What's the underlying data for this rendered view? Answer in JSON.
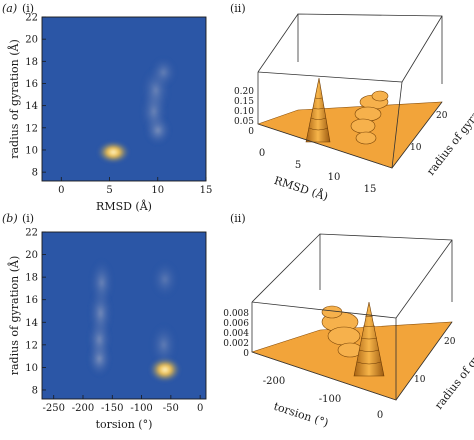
{
  "panel_labels": {
    "a": "(a)",
    "b": "(b)",
    "i": "(i)",
    "ii": "(ii)"
  },
  "colors": {
    "map_background": "#2b56a6",
    "hot": "#fff3b0",
    "surface": "#f2a43a",
    "surface_rim": "#8a4f0a",
    "axis": "#1a1a1a"
  },
  "chart_data": [
    {
      "id": "a-i",
      "type": "heatmap",
      "xlabel": "RMSD (Å)",
      "ylabel": "radius of gyration (Å)",
      "xlim": [
        -2,
        15
      ],
      "ylim": [
        7.2,
        22
      ],
      "xticks": [
        0,
        5,
        10,
        15
      ],
      "yticks": [
        8,
        10,
        12,
        14,
        16,
        18,
        20,
        22
      ],
      "peaks": [
        {
          "x": 5.4,
          "y": 9.8,
          "sx": 0.75,
          "sy": 0.45,
          "amp": 1.0
        },
        {
          "x": 10.0,
          "y": 11.8,
          "sx": 0.6,
          "sy": 0.6,
          "amp": 0.55
        },
        {
          "x": 9.6,
          "y": 13.5,
          "sx": 0.6,
          "sy": 0.9,
          "amp": 0.35
        },
        {
          "x": 9.8,
          "y": 15.4,
          "sx": 0.65,
          "sy": 0.9,
          "amp": 0.3
        },
        {
          "x": 10.6,
          "y": 17.0,
          "sx": 0.6,
          "sy": 0.6,
          "amp": 0.25
        }
      ]
    },
    {
      "id": "a-ii",
      "type": "surface",
      "xlabel": "RMSD (Å)",
      "ylabel": "radius of gyration",
      "xticks": [
        0,
        5,
        10,
        15
      ],
      "yticks": [
        10,
        20
      ],
      "zticks": [
        "0",
        "0.05",
        "0.10",
        "0.15",
        "0.20"
      ]
    },
    {
      "id": "b-i",
      "type": "heatmap",
      "xlabel": "torsion (°)",
      "ylabel": "radius of gyration (Å)",
      "xlim": [
        -270,
        10
      ],
      "ylim": [
        7.2,
        22
      ],
      "xticks": [
        -250,
        -200,
        -150,
        -100,
        -50,
        0
      ],
      "yticks": [
        8,
        10,
        12,
        14,
        16,
        18,
        20,
        22
      ],
      "peaks": [
        {
          "x": -60,
          "y": 9.8,
          "sx": 12,
          "sy": 0.5,
          "amp": 1.0
        },
        {
          "x": -172,
          "y": 10.8,
          "sx": 9,
          "sy": 0.7,
          "amp": 0.55
        },
        {
          "x": -172,
          "y": 12.5,
          "sx": 9,
          "sy": 0.8,
          "amp": 0.45
        },
        {
          "x": -170,
          "y": 14.8,
          "sx": 9,
          "sy": 1.0,
          "amp": 0.4
        },
        {
          "x": -168,
          "y": 17.5,
          "sx": 9,
          "sy": 0.9,
          "amp": 0.3
        },
        {
          "x": -62,
          "y": 12.0,
          "sx": 10,
          "sy": 0.8,
          "amp": 0.2
        },
        {
          "x": -60,
          "y": 17.8,
          "sx": 10,
          "sy": 0.7,
          "amp": 0.15
        }
      ]
    },
    {
      "id": "b-ii",
      "type": "surface",
      "xlabel": "torsion (°)",
      "ylabel": "radius of gyration",
      "xticks": [
        -200,
        -100,
        0
      ],
      "yticks": [
        10,
        20
      ],
      "zticks": [
        "0",
        "0.002",
        "0.004",
        "0.006",
        "0.008"
      ]
    }
  ]
}
